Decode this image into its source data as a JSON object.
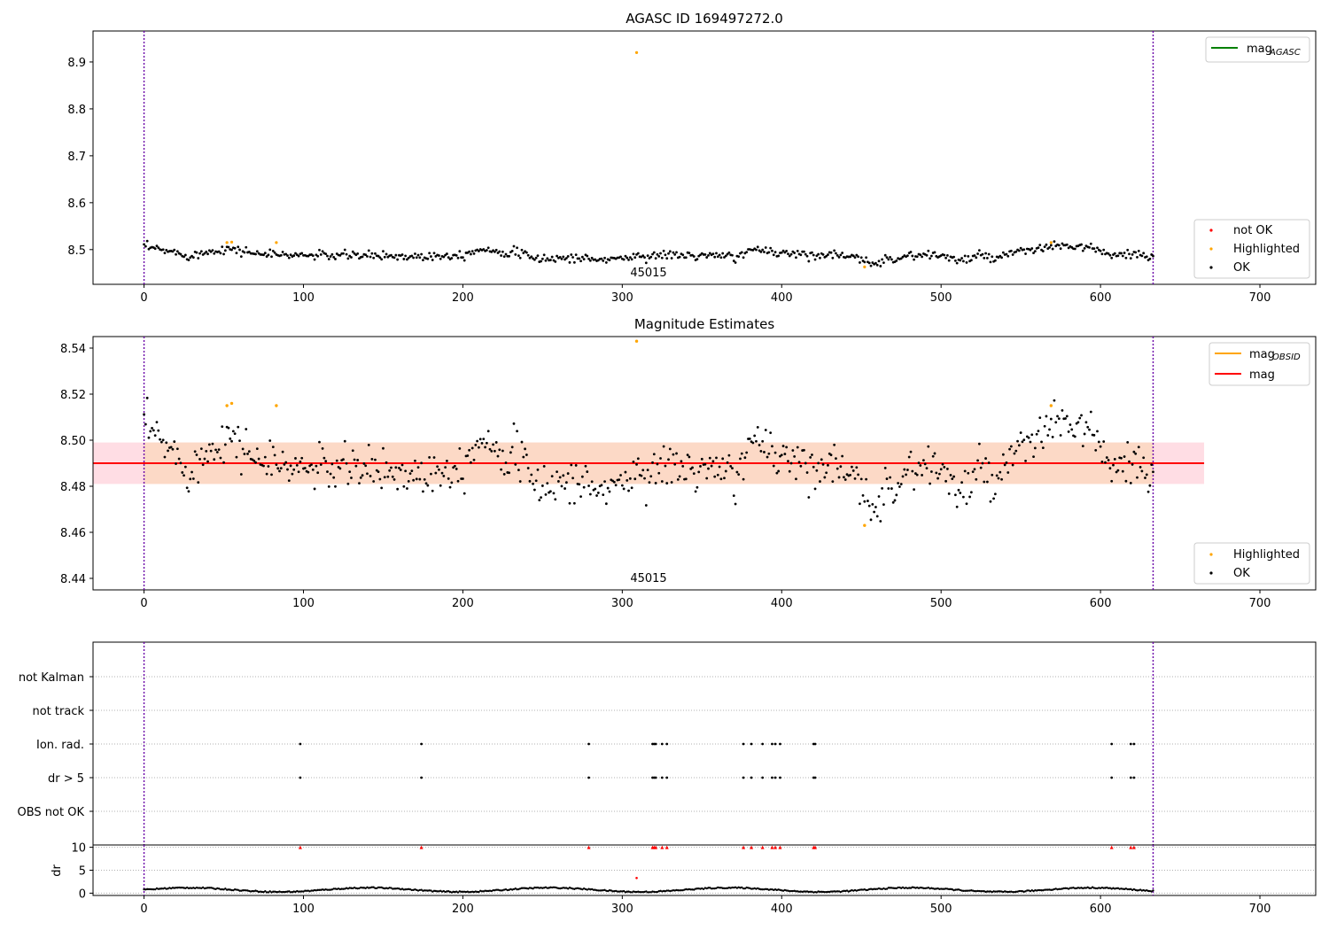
{
  "chart_data": [
    {
      "type": "scatter",
      "title": "AGASC ID 169497272.0",
      "xlim": [
        -32,
        735
      ],
      "ylim": [
        8.426,
        8.966
      ],
      "xticks": [
        0,
        100,
        200,
        300,
        400,
        500,
        600,
        700
      ],
      "yticks": [
        8.5,
        8.6,
        8.7,
        8.8,
        8.9
      ],
      "vlines": [
        0,
        633
      ],
      "annotation": "45015",
      "line_legend": [
        {
          "name": "mag",
          "sub": "AGASC",
          "color": "#008000"
        }
      ],
      "marker_legend": [
        {
          "name": "not OK",
          "color": "#ff0000"
        },
        {
          "name": "Highlighted",
          "color": "#ffa500"
        },
        {
          "name": "OK",
          "color": "#000000"
        }
      ],
      "highlighted": [
        [
          52,
          8.515
        ],
        [
          55,
          8.516
        ],
        [
          83,
          8.515
        ],
        [
          309,
          8.92
        ],
        [
          452,
          8.463
        ],
        [
          569,
          8.515
        ]
      ]
    },
    {
      "type": "scatter",
      "title": "Magnitude Estimates",
      "xlim": [
        -32,
        735
      ],
      "ylim": [
        8.435,
        8.545
      ],
      "xticks": [
        0,
        100,
        200,
        300,
        400,
        500,
        600,
        700
      ],
      "yticks": [
        8.44,
        8.46,
        8.48,
        8.5,
        8.52,
        8.54
      ],
      "vlines": [
        0,
        633
      ],
      "annotation": "45015",
      "mag_line": 8.49,
      "band": [
        8.481,
        8.499
      ],
      "band_xrange": [
        -32,
        665
      ],
      "line_legend": [
        {
          "name": "mag",
          "sub": "OBSID",
          "color": "#ffa500"
        },
        {
          "name": "mag",
          "sub": "",
          "color": "#ff0000"
        }
      ],
      "marker_legend": [
        {
          "name": "Highlighted",
          "color": "#ffa500"
        },
        {
          "name": "OK",
          "color": "#000000"
        }
      ],
      "highlighted": [
        [
          52,
          8.515
        ],
        [
          55,
          8.516
        ],
        [
          83,
          8.515
        ],
        [
          309,
          8.543
        ],
        [
          452,
          8.463
        ],
        [
          569,
          8.515
        ]
      ]
    },
    {
      "type": "scatter",
      "xlim": [
        -32,
        735
      ],
      "categories": [
        "not Kalman",
        "not track",
        "Ion. rad.",
        "dr > 5",
        "OBS not OK"
      ],
      "vlines": [
        0,
        633
      ],
      "flag_x": [
        98,
        174,
        279,
        319,
        320,
        321,
        325,
        328,
        376,
        381,
        388,
        394,
        396,
        399,
        420,
        421,
        607,
        619,
        621
      ],
      "flag_rows": [
        "Ion. rad.",
        "dr > 5"
      ]
    },
    {
      "type": "scatter",
      "ylabel": "dr",
      "xlim": [
        -32,
        735
      ],
      "ylim": [
        -0.5,
        10.5
      ],
      "yticks": [
        0,
        5,
        10
      ],
      "xticks": [
        0,
        100,
        200,
        300,
        400,
        500,
        600,
        700
      ],
      "vlines": [
        0,
        633
      ],
      "clipped_at": 10,
      "outliers": [
        [
          309,
          3.3
        ]
      ],
      "flag_x": [
        98,
        174,
        279,
        319,
        320,
        321,
        325,
        328,
        376,
        381,
        388,
        394,
        396,
        399,
        420,
        421,
        607,
        619,
        621
      ]
    }
  ]
}
